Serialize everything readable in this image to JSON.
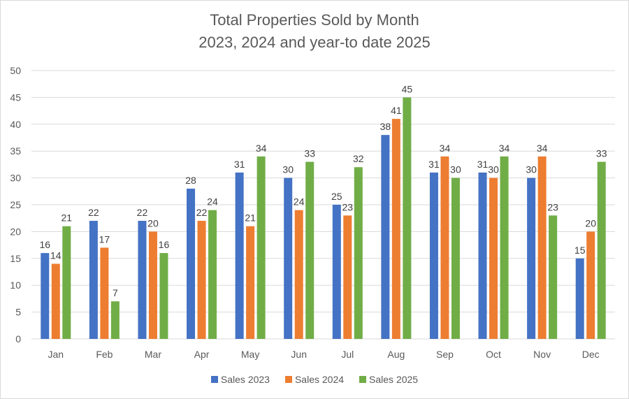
{
  "chart_data": {
    "type": "bar",
    "title": "Total Properties Sold by Month",
    "subtitle": "2023, 2024 and year-to date 2025",
    "xlabel": "",
    "ylabel": "",
    "ylim": [
      0,
      50
    ],
    "yticks": [
      0,
      5,
      10,
      15,
      20,
      25,
      30,
      35,
      40,
      45,
      50
    ],
    "grid": true,
    "legend_position": "bottom",
    "categories": [
      "Jan",
      "Feb",
      "Mar",
      "Apr",
      "May",
      "Jun",
      "Jul",
      "Aug",
      "Sep",
      "Oct",
      "Nov",
      "Dec"
    ],
    "series": [
      {
        "name": "Sales 2023",
        "color": "#4472c4",
        "values": [
          16,
          22,
          22,
          28,
          31,
          30,
          25,
          38,
          31,
          31,
          30,
          15
        ]
      },
      {
        "name": "Sales 2024",
        "color": "#ed7d31",
        "values": [
          14,
          17,
          20,
          22,
          21,
          24,
          23,
          41,
          34,
          30,
          34,
          20
        ]
      },
      {
        "name": "Sales 2025",
        "color": "#70ad47",
        "values": [
          21,
          7,
          16,
          24,
          34,
          33,
          32,
          45,
          30,
          34,
          23,
          33
        ]
      }
    ],
    "data_labels": true
  }
}
